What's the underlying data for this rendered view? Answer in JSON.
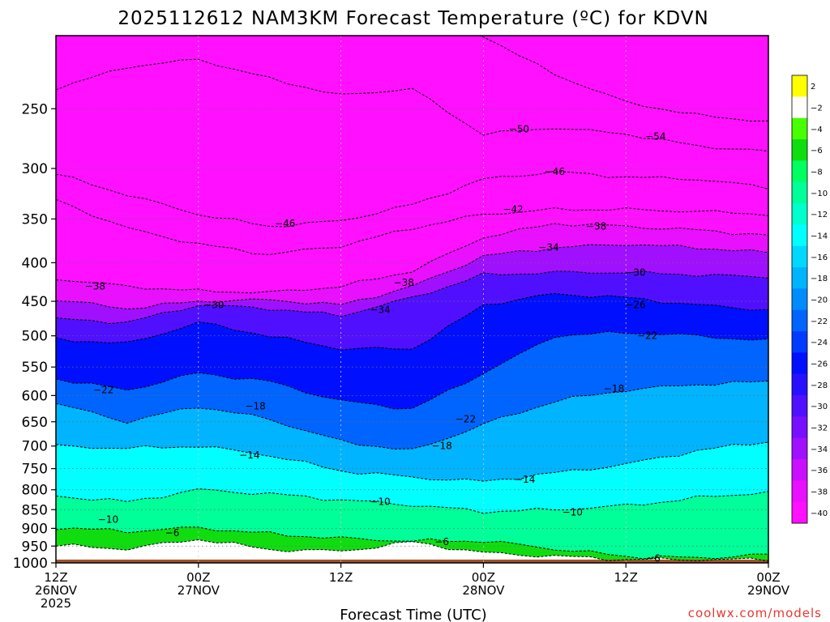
{
  "title": "2025112612 NAM3KM Forecast Temperature (ºC) for KDVN",
  "credit": "coolwx.com/models",
  "chart_data": {
    "type": "heatmap",
    "title": "2025112612 NAM3KM Forecast Temperature (ºC) for KDVN",
    "xlabel": "Forecast Time (UTC)",
    "ylabel": "",
    "x_ticks": [
      {
        "h": 0,
        "line1": "12Z",
        "line2": "26NOV",
        "line3": "2025"
      },
      {
        "h": 12,
        "line1": "00Z",
        "line2": "27NOV",
        "line3": ""
      },
      {
        "h": 24,
        "line1": "12Z",
        "line2": "",
        "line3": ""
      },
      {
        "h": 36,
        "line1": "00Z",
        "line2": "28NOV",
        "line3": ""
      },
      {
        "h": 48,
        "line1": "12Z",
        "line2": "",
        "line3": ""
      },
      {
        "h": 60,
        "line1": "00Z",
        "line2": "29NOV",
        "line3": ""
      }
    ],
    "y_ticks": [
      250,
      300,
      350,
      400,
      450,
      500,
      550,
      600,
      650,
      700,
      750,
      800,
      850,
      900,
      950,
      1000
    ],
    "y_scale": "log-pressure",
    "ylim": [
      200,
      1000
    ],
    "xlim": [
      0,
      60
    ],
    "surface_pressure_hPa": 990,
    "grid": true,
    "colorbar": {
      "levels": [
        2,
        -2,
        -4,
        -6,
        -8,
        -10,
        -12,
        -14,
        -16,
        -18,
        -20,
        -22,
        -24,
        -26,
        -28,
        -30,
        -32,
        -34,
        -36,
        -38,
        -40
      ],
      "colors": [
        "#ffff00",
        "#ffffff",
        "#48ff00",
        "#10dd10",
        "#00ff60",
        "#00ff99",
        "#00ffcc",
        "#00ffff",
        "#00d8ff",
        "#00b4ff",
        "#008cff",
        "#0064ff",
        "#003cff",
        "#0010ff",
        "#2810ff",
        "#5010ff",
        "#7810ff",
        "#a010ff",
        "#c810ff",
        "#e810ff",
        "#ff10ff"
      ]
    },
    "times_h": [
      0,
      6,
      12,
      18,
      24,
      30,
      36,
      42,
      48,
      54,
      60
    ],
    "series": [
      {
        "isotherm": -54,
        "p": [
          190,
          190,
          190,
          190,
          190,
          190,
          200,
          225,
          245,
          255,
          260
        ]
      },
      {
        "isotherm": -50,
        "p": [
          235,
          220,
          215,
          228,
          240,
          235,
          270,
          265,
          270,
          280,
          285
        ]
      },
      {
        "isotherm": -46,
        "p": [
          305,
          325,
          345,
          358,
          352,
          335,
          310,
          303,
          308,
          310,
          318
        ]
      },
      {
        "isotherm": -42,
        "p": [
          330,
          360,
          378,
          390,
          380,
          360,
          345,
          340,
          340,
          342,
          345
        ]
      },
      {
        "isotherm": -38,
        "p": [
          420,
          430,
          436,
          438,
          430,
          410,
          370,
          355,
          358,
          362,
          368
        ]
      },
      {
        "isotherm": -34,
        "p": [
          448,
          460,
          450,
          448,
          455,
          430,
          392,
          382,
          378,
          382,
          388
        ]
      },
      {
        "isotherm": -30,
        "p": [
          475,
          480,
          455,
          460,
          470,
          445,
          415,
          412,
          412,
          415,
          418
        ]
      },
      {
        "isotherm": -26,
        "p": [
          505,
          512,
          480,
          500,
          520,
          520,
          455,
          440,
          445,
          455,
          462
        ]
      },
      {
        "isotherm": -22,
        "p": [
          570,
          590,
          560,
          575,
          610,
          625,
          560,
          500,
          495,
          500,
          508
        ]
      },
      {
        "isotherm": -18,
        "p": [
          615,
          650,
          620,
          645,
          690,
          710,
          655,
          610,
          590,
          580,
          575
        ]
      },
      {
        "isotherm": -14,
        "p": [
          700,
          705,
          700,
          720,
          755,
          770,
          780,
          760,
          740,
          710,
          690
        ]
      },
      {
        "isotherm": -10,
        "p": [
          815,
          830,
          800,
          810,
          825,
          838,
          855,
          850,
          840,
          820,
          805
        ]
      },
      {
        "isotherm": -6,
        "p": [
          898,
          908,
          898,
          915,
          928,
          935,
          935,
          958,
          980,
          985,
          975
        ]
      },
      {
        "isotherm": -2,
        "p": [
          948,
          958,
          930,
          960,
          965,
          938,
          970,
          980,
          990,
          990,
          990
        ]
      }
    ],
    "contour_labels": [
      {
        "text": "-54",
        "h": 50.5,
        "p": 272
      },
      {
        "text": "-50",
        "h": 39,
        "p": 266
      },
      {
        "text": "-46",
        "h": 42,
        "p": 303
      },
      {
        "text": "-46",
        "h": 19.3,
        "p": 355
      },
      {
        "text": "-42",
        "h": 38.5,
        "p": 340
      },
      {
        "text": "-38",
        "h": 45.5,
        "p": 358
      },
      {
        "text": "-38",
        "h": 29.3,
        "p": 425
      },
      {
        "text": "-38",
        "h": 3.3,
        "p": 430
      },
      {
        "text": "-34",
        "h": 41.5,
        "p": 382
      },
      {
        "text": "-34",
        "h": 27.3,
        "p": 462
      },
      {
        "text": "-30",
        "h": 48.8,
        "p": 412
      },
      {
        "text": "-30",
        "h": 13.3,
        "p": 455
      },
      {
        "text": "-26",
        "h": 48.8,
        "p": 455
      },
      {
        "text": "-22",
        "h": 49.8,
        "p": 500
      },
      {
        "text": "-22",
        "h": 4,
        "p": 590
      },
      {
        "text": "-22",
        "h": 34.5,
        "p": 645
      },
      {
        "text": "-18",
        "h": 47,
        "p": 588
      },
      {
        "text": "-18",
        "h": 16.8,
        "p": 620
      },
      {
        "text": "-18",
        "h": 32.5,
        "p": 700
      },
      {
        "text": "-14",
        "h": 16.3,
        "p": 720
      },
      {
        "text": "-14",
        "h": 39.5,
        "p": 775
      },
      {
        "text": "-10",
        "h": 27.3,
        "p": 830
      },
      {
        "text": "-10",
        "h": 43.5,
        "p": 857
      },
      {
        "text": "-10",
        "h": 4.4,
        "p": 876
      },
      {
        "text": "-6",
        "h": 9.8,
        "p": 913
      },
      {
        "text": "-6",
        "h": 32.5,
        "p": 938
      },
      {
        "text": "-6",
        "h": 50.3,
        "p": 987
      }
    ]
  }
}
